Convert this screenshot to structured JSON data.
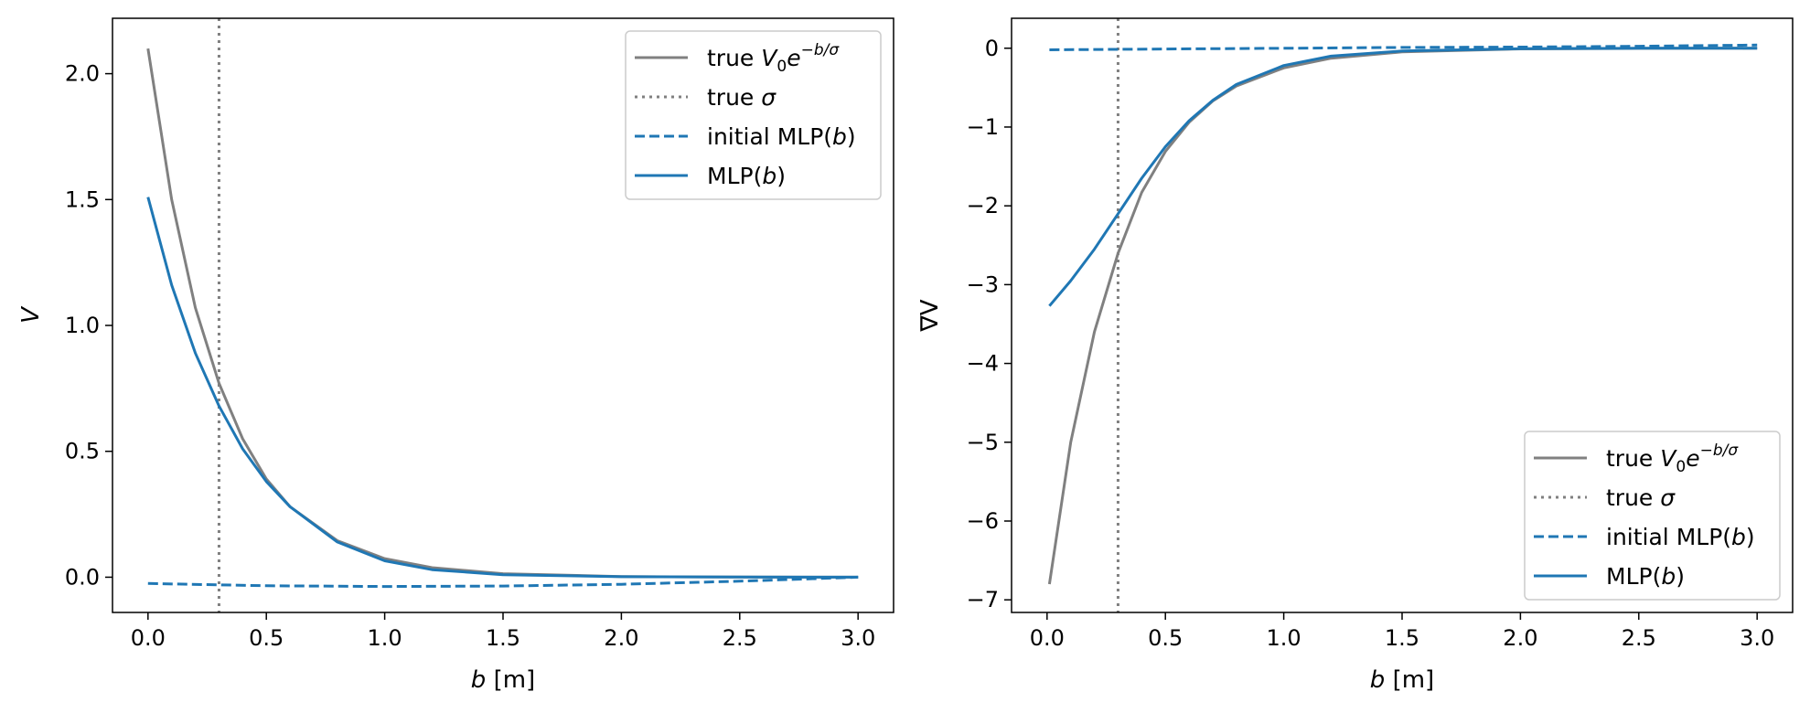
{
  "chart_data": [
    {
      "type": "line",
      "xlabel": {
        "var": "b",
        "unit": " [m]"
      },
      "ylabel": "V",
      "xlim": [
        -0.15,
        3.15
      ],
      "ylim": [
        -0.14,
        2.22
      ],
      "xticks": [
        0.0,
        0.5,
        1.0,
        1.5,
        2.0,
        2.5,
        3.0
      ],
      "xtick_labels": [
        "0.0",
        "0.5",
        "1.0",
        "1.5",
        "2.0",
        "2.5",
        "3.0"
      ],
      "yticks": [
        0.0,
        0.5,
        1.0,
        1.5,
        2.0
      ],
      "ytick_labels": [
        "0.0",
        "0.5",
        "1.0",
        "1.5",
        "2.0"
      ],
      "grid": false,
      "legend": {
        "placement": "upper-right",
        "entries": [
          "true V0e^{-b/σ}",
          "true σ",
          "initial MLP(b)",
          "MLP(b)"
        ]
      },
      "series": [
        {
          "name": "true V0e^{-b/σ}",
          "color": "#808080",
          "style": "solid",
          "x": [
            0.0,
            0.1,
            0.2,
            0.3,
            0.4,
            0.5,
            0.6,
            0.8,
            1.0,
            1.2,
            1.5,
            2.0,
            2.5,
            3.0
          ],
          "y": [
            2.1,
            1.5,
            1.07,
            0.77,
            0.55,
            0.39,
            0.28,
            0.145,
            0.074,
            0.038,
            0.014,
            0.0027,
            0.0005,
            0.0001
          ]
        },
        {
          "name": "true σ",
          "color": "#808080",
          "style": "dotted",
          "vline": 0.3
        },
        {
          "name": "initial MLP(b)",
          "color": "#1f77b4",
          "style": "dashed",
          "x": [
            0.0,
            0.5,
            1.0,
            1.5,
            2.0,
            2.5,
            3.0
          ],
          "y": [
            -0.025,
            -0.034,
            -0.037,
            -0.035,
            -0.028,
            -0.016,
            0.0
          ]
        },
        {
          "name": "MLP(b)",
          "color": "#1f77b4",
          "style": "solid",
          "x": [
            0.0,
            0.1,
            0.2,
            0.3,
            0.4,
            0.5,
            0.6,
            0.8,
            1.0,
            1.2,
            1.5,
            2.0,
            2.5,
            3.0
          ],
          "y": [
            1.51,
            1.16,
            0.89,
            0.68,
            0.51,
            0.38,
            0.28,
            0.14,
            0.065,
            0.03,
            0.01,
            0.002,
            0.0005,
            0.0
          ]
        }
      ]
    },
    {
      "type": "line",
      "xlabel": {
        "var": "b",
        "unit": " [m]"
      },
      "ylabel": "∇V",
      "xlim": [
        -0.15,
        3.15
      ],
      "ylim": [
        -7.16,
        0.38
      ],
      "xticks": [
        0.0,
        0.5,
        1.0,
        1.5,
        2.0,
        2.5,
        3.0
      ],
      "xtick_labels": [
        "0.0",
        "0.5",
        "1.0",
        "1.5",
        "2.0",
        "2.5",
        "3.0"
      ],
      "yticks": [
        0,
        -1,
        -2,
        -3,
        -4,
        -5,
        -6,
        -7
      ],
      "ytick_labels": [
        "0",
        "−1",
        "−2",
        "−3",
        "−4",
        "−5",
        "−6",
        "−7"
      ],
      "grid": false,
      "legend": {
        "placement": "lower-right",
        "entries": [
          "true V0e^{-b/σ}",
          "true σ",
          "initial MLP(b)",
          "MLP(b)"
        ]
      },
      "series": [
        {
          "name": "true V0e^{-b/σ}",
          "color": "#808080",
          "style": "solid",
          "x": [
            0.01,
            0.1,
            0.2,
            0.3,
            0.4,
            0.5,
            0.6,
            0.7,
            0.8,
            1.0,
            1.2,
            1.5,
            2.0,
            2.5,
            3.0
          ],
          "y": [
            -6.8,
            -5.0,
            -3.6,
            -2.6,
            -1.83,
            -1.31,
            -0.94,
            -0.67,
            -0.48,
            -0.25,
            -0.127,
            -0.047,
            -0.009,
            -0.002,
            0.0
          ]
        },
        {
          "name": "true σ",
          "color": "#808080",
          "style": "dotted",
          "vline": 0.3
        },
        {
          "name": "initial MLP(b)",
          "color": "#1f77b4",
          "style": "dashed",
          "x": [
            0.01,
            0.5,
            1.0,
            1.5,
            2.0,
            2.5,
            3.0
          ],
          "y": [
            -0.02,
            -0.01,
            0.0,
            0.01,
            0.015,
            0.025,
            0.04
          ]
        },
        {
          "name": "MLP(b)",
          "color": "#1f77b4",
          "style": "solid",
          "x": [
            0.01,
            0.1,
            0.2,
            0.3,
            0.4,
            0.5,
            0.6,
            0.7,
            0.8,
            1.0,
            1.2,
            1.5,
            2.0,
            2.5,
            3.0
          ],
          "y": [
            -3.27,
            -2.95,
            -2.55,
            -2.1,
            -1.65,
            -1.25,
            -0.92,
            -0.66,
            -0.46,
            -0.22,
            -0.1,
            -0.035,
            -0.006,
            -0.001,
            0.0
          ]
        }
      ]
    }
  ]
}
